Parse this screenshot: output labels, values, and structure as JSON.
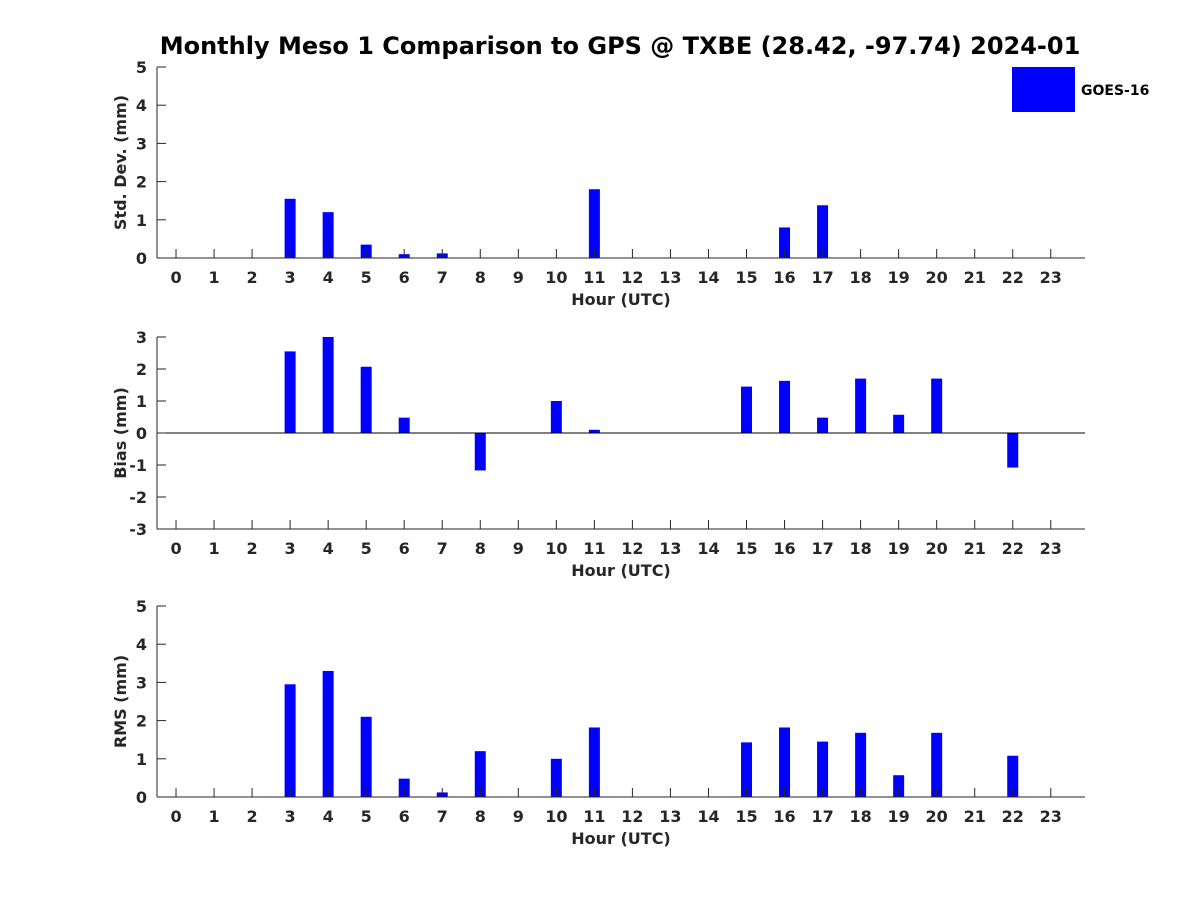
{
  "title": "Monthly Meso 1 Comparison to GPS @ TXBE (28.42, -97.74) 2024-01",
  "colors": {
    "bar": "#0000ff",
    "axis": "#262626",
    "background": "#ffffff"
  },
  "legend": {
    "label": "GOES-16",
    "placement": "top-right"
  },
  "chart_data": [
    {
      "type": "bar",
      "ylabel": "Std. Dev. (mm)",
      "xlabel": "Hour (UTC)",
      "x": [
        0,
        1,
        2,
        3,
        4,
        5,
        6,
        7,
        8,
        9,
        10,
        11,
        12,
        13,
        14,
        15,
        16,
        17,
        18,
        19,
        20,
        21,
        22,
        23
      ],
      "ylim": [
        0,
        5
      ],
      "yticks": [
        0,
        1,
        2,
        3,
        4,
        5
      ],
      "series": [
        {
          "name": "GOES-16",
          "values": [
            null,
            null,
            null,
            1.55,
            1.2,
            0.35,
            0.1,
            0.12,
            null,
            null,
            null,
            1.8,
            null,
            null,
            null,
            null,
            0.8,
            1.38,
            null,
            null,
            null,
            null,
            null,
            null
          ]
        }
      ]
    },
    {
      "type": "bar",
      "ylabel": "Bias (mm)",
      "xlabel": "Hour (UTC)",
      "x": [
        0,
        1,
        2,
        3,
        4,
        5,
        6,
        7,
        8,
        9,
        10,
        11,
        12,
        13,
        14,
        15,
        16,
        17,
        18,
        19,
        20,
        21,
        22,
        23
      ],
      "ylim": [
        -3,
        3
      ],
      "yticks": [
        -3,
        -2,
        -1,
        0,
        1,
        2,
        3
      ],
      "series": [
        {
          "name": "GOES-16",
          "values": [
            null,
            null,
            null,
            2.55,
            3.0,
            2.07,
            0.48,
            null,
            -1.17,
            null,
            1.0,
            0.1,
            null,
            null,
            null,
            1.45,
            1.63,
            0.48,
            1.7,
            0.57,
            1.7,
            null,
            -1.08,
            null
          ]
        }
      ]
    },
    {
      "type": "bar",
      "ylabel": "RMS (mm)",
      "xlabel": "Hour (UTC)",
      "x": [
        0,
        1,
        2,
        3,
        4,
        5,
        6,
        7,
        8,
        9,
        10,
        11,
        12,
        13,
        14,
        15,
        16,
        17,
        18,
        19,
        20,
        21,
        22,
        23
      ],
      "ylim": [
        0,
        5
      ],
      "yticks": [
        0,
        1,
        2,
        3,
        4,
        5
      ],
      "series": [
        {
          "name": "GOES-16",
          "values": [
            null,
            null,
            null,
            2.95,
            3.3,
            2.1,
            0.48,
            0.12,
            1.2,
            null,
            1.0,
            1.82,
            null,
            null,
            null,
            1.43,
            1.82,
            1.45,
            1.68,
            0.57,
            1.68,
            null,
            1.08,
            null
          ]
        }
      ]
    }
  ]
}
